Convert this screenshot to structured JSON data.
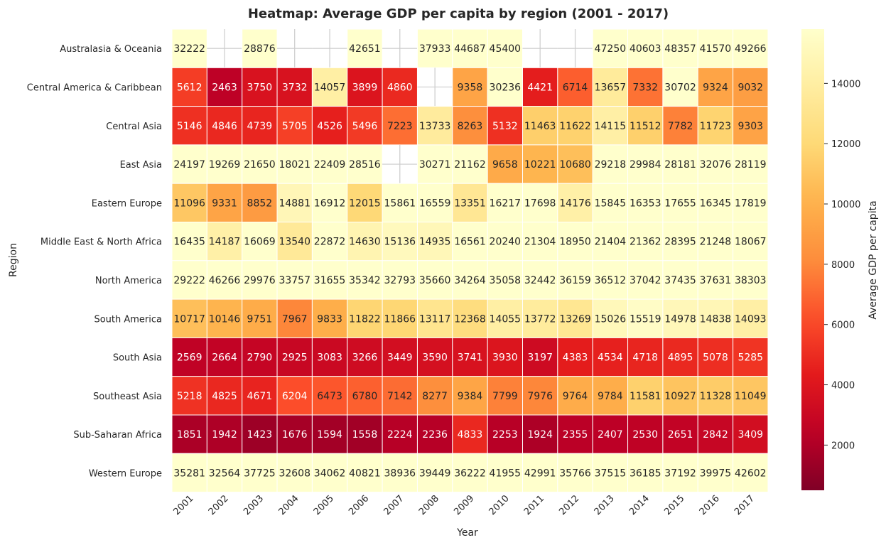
{
  "chart_data": {
    "type": "heatmap",
    "title": "Heatmap: Average GDP per capita by region (2001 - 2017)",
    "xlabel": "Year",
    "ylabel": "Region",
    "colorbar_label": "Average GDP per capita",
    "colormap": "YlOrRd_r",
    "color_range": [
      500,
      15800
    ],
    "colorbar_ticks": [
      2000,
      4000,
      6000,
      8000,
      10000,
      12000,
      14000
    ],
    "grid": true,
    "legend": "colorbar right",
    "x": [
      "2001",
      "2002",
      "2003",
      "2004",
      "2005",
      "2006",
      "2007",
      "2008",
      "2009",
      "2010",
      "2011",
      "2012",
      "2013",
      "2014",
      "2015",
      "2016",
      "2017"
    ],
    "y": [
      "Australasia & Oceania",
      "Central America & Caribbean",
      "Central Asia",
      "East Asia",
      "Eastern Europe",
      "Middle East & North Africa",
      "North America",
      "South America",
      "South Asia",
      "Southeast Asia",
      "Sub-Saharan Africa",
      "Western Europe"
    ],
    "values": [
      [
        32222,
        null,
        28876,
        null,
        null,
        42651,
        null,
        37933,
        44687,
        45400,
        null,
        null,
        47250,
        40603,
        48357,
        41570,
        49266
      ],
      [
        5612,
        2463,
        3750,
        3732,
        14057,
        3899,
        4860,
        null,
        9358,
        30236,
        4421,
        6714,
        13657,
        7332,
        30702,
        9324,
        9032
      ],
      [
        5146,
        4846,
        4739,
        5705,
        4526,
        5496,
        7223,
        13733,
        8263,
        5132,
        11463,
        11622,
        14115,
        11512,
        7782,
        11723,
        9303
      ],
      [
        24197,
        19269,
        21650,
        18021,
        22409,
        28516,
        null,
        30271,
        21162,
        9658,
        10221,
        10680,
        29218,
        29984,
        28181,
        32076,
        28119
      ],
      [
        11096,
        9331,
        8852,
        14881,
        16912,
        12015,
        15861,
        16559,
        13351,
        16217,
        17698,
        14176,
        15845,
        16353,
        17655,
        16345,
        17819
      ],
      [
        16435,
        14187,
        16069,
        13540,
        22872,
        14630,
        15136,
        14935,
        16561,
        20240,
        21304,
        18950,
        21404,
        21362,
        28395,
        21248,
        18067
      ],
      [
        29222,
        46266,
        29976,
        33757,
        31655,
        35342,
        32793,
        35660,
        34264,
        35058,
        32442,
        36159,
        36512,
        37042,
        37435,
        37631,
        38303
      ],
      [
        10717,
        10146,
        9751,
        7967,
        9833,
        11822,
        11866,
        13117,
        12368,
        14055,
        13772,
        13269,
        15026,
        15519,
        14978,
        14838,
        14093
      ],
      [
        2569,
        2664,
        2790,
        2925,
        3083,
        3266,
        3449,
        3590,
        3741,
        3930,
        3197,
        4383,
        4534,
        4718,
        4895,
        5078,
        5285
      ],
      [
        5218,
        4825,
        4671,
        6204,
        6473,
        6780,
        7142,
        8277,
        9384,
        7799,
        7976,
        9764,
        9784,
        11581,
        10927,
        11328,
        11049
      ],
      [
        1851,
        1942,
        1423,
        1676,
        1594,
        1558,
        2224,
        2236,
        4833,
        2253,
        1924,
        2355,
        2407,
        2530,
        2651,
        2842,
        3409
      ],
      [
        35281,
        32564,
        37725,
        32608,
        34062,
        40821,
        38936,
        39449,
        36222,
        41955,
        42991,
        35766,
        37515,
        36185,
        37192,
        39975,
        42602
      ]
    ]
  }
}
